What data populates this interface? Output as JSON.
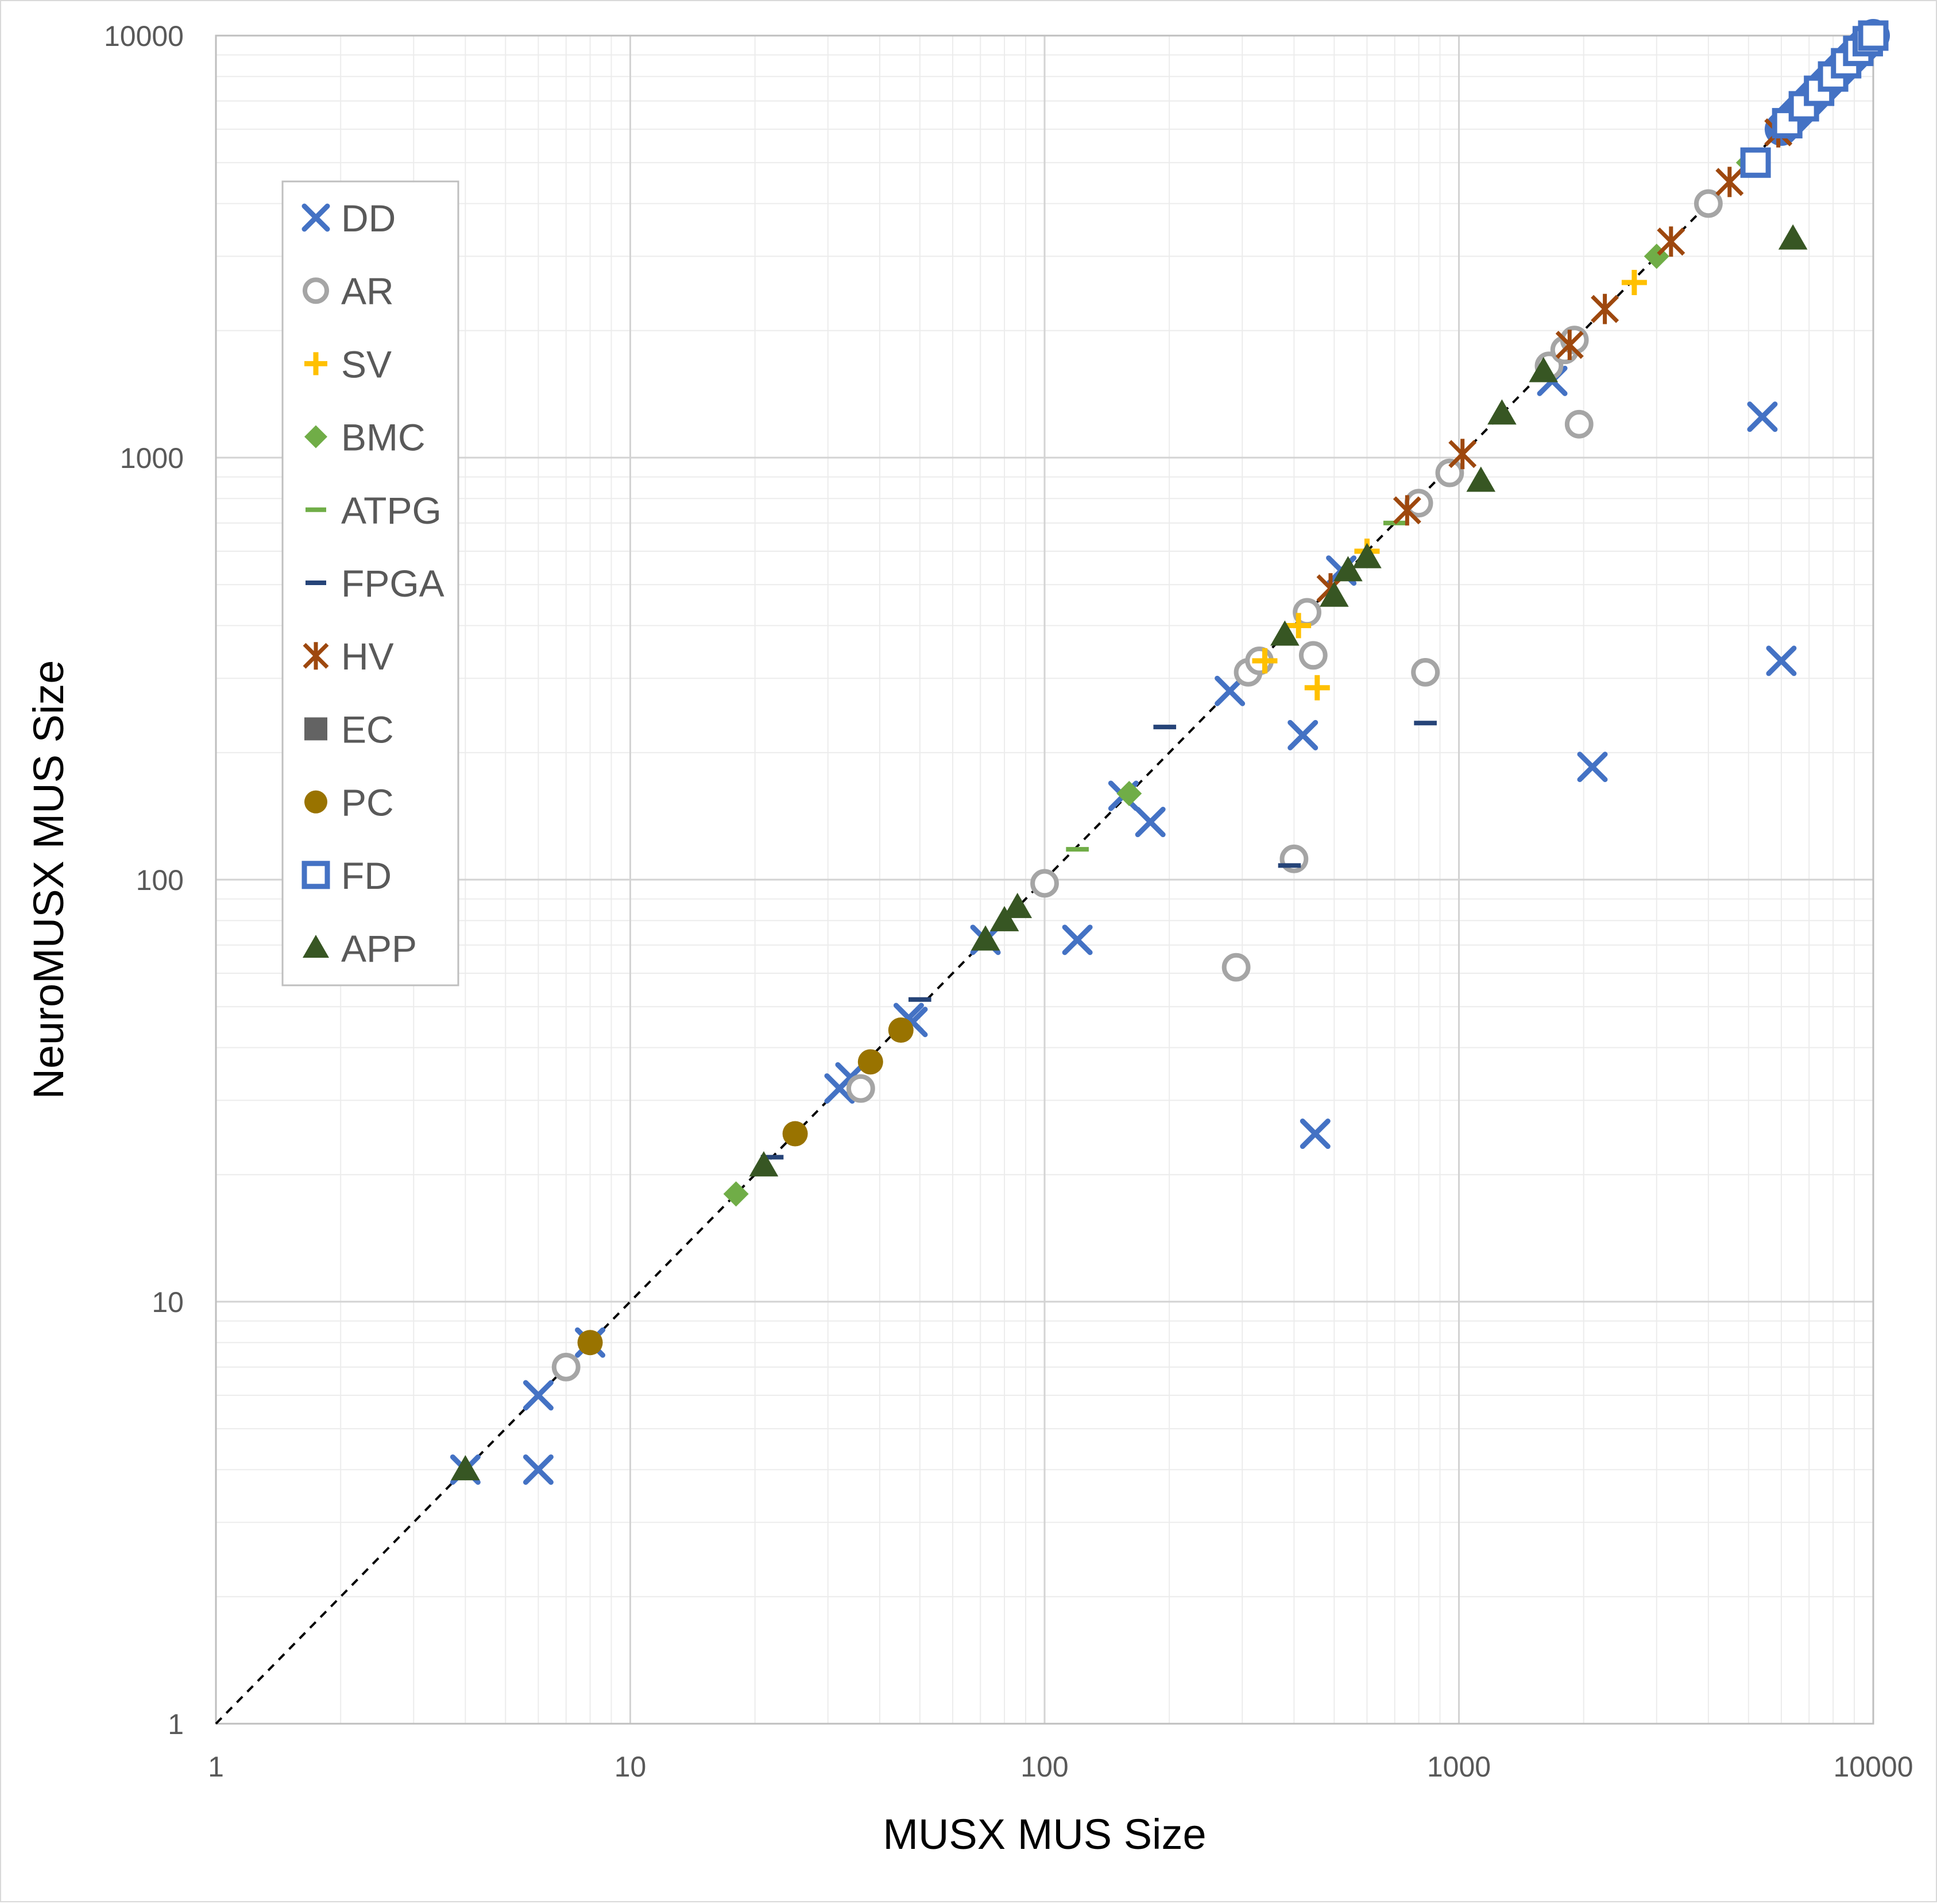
{
  "chart_data": {
    "type": "scatter",
    "title": "",
    "xlabel": "MUSX MUS Size",
    "ylabel": "NeuroMUSX MUS Size",
    "xscale": "log",
    "yscale": "log",
    "xlim": [
      1,
      10000
    ],
    "ylim": [
      1,
      10000
    ],
    "x_ticks": [
      "1",
      "10",
      "100",
      "1000",
      "10000"
    ],
    "y_ticks": [
      "1",
      "10",
      "100",
      "1000",
      "10000"
    ],
    "grid": "major and minor",
    "legend_position": "left, upper-middle",
    "reference_line": "y = x (dashed)",
    "series": [
      {
        "name": "DD",
        "marker": "x",
        "color": "#4472C4",
        "points": [
          [
            4,
            4
          ],
          [
            6,
            6
          ],
          [
            6,
            4
          ],
          [
            8,
            8
          ],
          [
            32,
            32
          ],
          [
            34,
            34
          ],
          [
            47,
            47
          ],
          [
            48,
            46
          ],
          [
            72,
            72
          ],
          [
            120,
            72
          ],
          [
            155,
            158
          ],
          [
            180,
            137
          ],
          [
            280,
            280
          ],
          [
            420,
            220
          ],
          [
            450,
            25
          ],
          [
            520,
            540
          ],
          [
            1680,
            1520
          ],
          [
            2100,
            185
          ],
          [
            5400,
            1250
          ],
          [
            6000,
            330
          ]
        ]
      },
      {
        "name": "AR",
        "marker": "circle-open",
        "color": "#A5A5A5",
        "points": [
          [
            7,
            7
          ],
          [
            36,
            32
          ],
          [
            100,
            98
          ],
          [
            290,
            62
          ],
          [
            310,
            310
          ],
          [
            330,
            330
          ],
          [
            400,
            112
          ],
          [
            430,
            430
          ],
          [
            445,
            340
          ],
          [
            800,
            780
          ],
          [
            830,
            310
          ],
          [
            950,
            920
          ],
          [
            1650,
            1650
          ],
          [
            1800,
            1800
          ],
          [
            1900,
            1900
          ],
          [
            1950,
            1200
          ],
          [
            4000,
            4000
          ]
        ]
      },
      {
        "name": "SV",
        "marker": "plus",
        "color": "#FFC000",
        "points": [
          [
            340,
            330
          ],
          [
            410,
            400
          ],
          [
            455,
            285
          ],
          [
            600,
            600
          ],
          [
            2650,
            2600
          ]
        ]
      },
      {
        "name": "BMC",
        "marker": "diamond",
        "color": "#70AD47",
        "points": [
          [
            18,
            18
          ],
          [
            160,
            160
          ],
          [
            3000,
            3000
          ],
          [
            5000,
            5000
          ]
        ]
      },
      {
        "name": "ATPG",
        "marker": "dash",
        "color": "#70AD47",
        "points": [
          [
            120,
            118
          ],
          [
            700,
            700
          ]
        ]
      },
      {
        "name": "FPGA",
        "marker": "dash",
        "color": "#264478",
        "points": [
          [
            22,
            22
          ],
          [
            50,
            52
          ],
          [
            195,
            230
          ],
          [
            390,
            108
          ],
          [
            830,
            235
          ]
        ]
      },
      {
        "name": "HV",
        "marker": "asterisk",
        "color": "#9E480E",
        "points": [
          [
            490,
            490
          ],
          [
            750,
            750
          ],
          [
            1020,
            1020
          ],
          [
            1850,
            1850
          ],
          [
            2250,
            2250
          ],
          [
            3250,
            3250
          ],
          [
            4500,
            4500
          ],
          [
            5900,
            5900
          ]
        ]
      },
      {
        "name": "EC",
        "marker": "square",
        "color": "#636363",
        "points": []
      },
      {
        "name": "PC",
        "marker": "circle",
        "color": "#997300",
        "points": [
          [
            8,
            8
          ],
          [
            25,
            25
          ],
          [
            38,
            37
          ],
          [
            45,
            44
          ]
        ]
      },
      {
        "name": "FD",
        "marker": "square-open",
        "color": "#4472C4",
        "points": [
          [
            5200,
            5000
          ],
          [
            6200,
            6200
          ],
          [
            6800,
            6800
          ],
          [
            7400,
            7400
          ],
          [
            8000,
            8000
          ],
          [
            8600,
            8600
          ],
          [
            9200,
            9200
          ],
          [
            9700,
            9700
          ],
          [
            10000,
            10000
          ]
        ]
      },
      {
        "name": "APP",
        "marker": "triangle",
        "color": "#375623",
        "points": [
          [
            4,
            4
          ],
          [
            21,
            21
          ],
          [
            72,
            72
          ],
          [
            80,
            80
          ],
          [
            86,
            86
          ],
          [
            380,
            380
          ],
          [
            500,
            470
          ],
          [
            540,
            540
          ],
          [
            600,
            580
          ],
          [
            1130,
            880
          ],
          [
            1270,
            1270
          ],
          [
            1600,
            1600
          ],
          [
            6400,
            3300
          ]
        ]
      }
    ]
  }
}
